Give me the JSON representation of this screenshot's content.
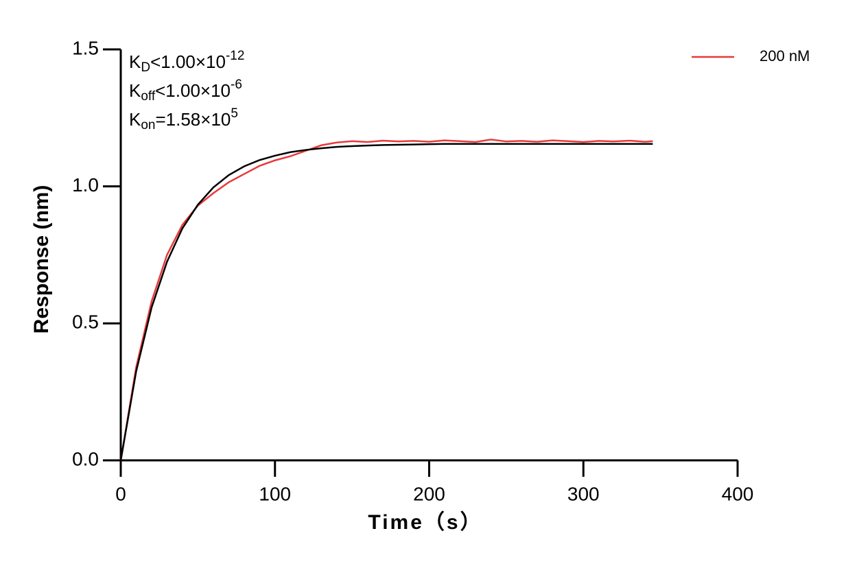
{
  "chart_data": {
    "type": "line",
    "x_label": "Time（s）",
    "y_label": "Response (nm)",
    "annotations": [
      {
        "base": "K",
        "sub": "D",
        "text": "<1.00×10",
        "sup": "-12"
      },
      {
        "base": "K",
        "sub": "off",
        "text": "<1.00×10",
        "sup": "-6"
      },
      {
        "base": "K",
        "sub": "on",
        "text": "=1.58×10",
        "sup": "5"
      }
    ],
    "x": [
      0,
      10,
      20,
      30,
      40,
      50,
      60,
      70,
      80,
      90,
      100,
      110,
      120,
      130,
      140,
      150,
      160,
      170,
      180,
      190,
      200,
      210,
      220,
      230,
      240,
      250,
      260,
      270,
      280,
      290,
      300,
      310,
      320,
      330,
      340,
      345
    ],
    "series": [
      {
        "name": "200 nM",
        "color": "#e8393a",
        "values": [
          0,
          0.34,
          0.58,
          0.75,
          0.86,
          0.93,
          0.975,
          1.015,
          1.045,
          1.075,
          1.095,
          1.11,
          1.13,
          1.15,
          1.16,
          1.165,
          1.162,
          1.167,
          1.164,
          1.166,
          1.163,
          1.168,
          1.165,
          1.162,
          1.171,
          1.164,
          1.166,
          1.163,
          1.168,
          1.165,
          1.162,
          1.166,
          1.164,
          1.167,
          1.163,
          1.165
        ]
      },
      {
        "color": "#000000",
        "values": [
          0,
          0.325,
          0.558,
          0.725,
          0.847,
          0.933,
          0.996,
          1.041,
          1.073,
          1.096,
          1.112,
          1.125,
          1.133,
          1.139,
          1.144,
          1.147,
          1.149,
          1.151,
          1.152,
          1.153,
          1.154,
          1.155,
          1.155,
          1.155,
          1.155,
          1.155,
          1.155,
          1.155,
          1.155,
          1.155,
          1.155,
          1.155,
          1.155,
          1.155,
          1.155,
          1.155
        ]
      }
    ],
    "xlim": [
      0,
      400
    ],
    "xticks": [
      0,
      100,
      200,
      300,
      400
    ],
    "ylim": [
      0,
      1.5
    ],
    "yticks": [
      {
        "value": 0,
        "label": "0.0"
      },
      0.5,
      {
        "value": 1,
        "label": "1.0"
      },
      1.5
    ],
    "legend": "top-right"
  }
}
